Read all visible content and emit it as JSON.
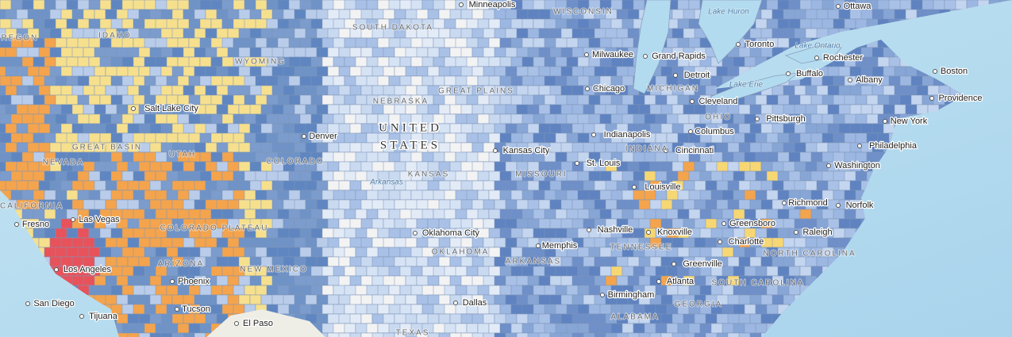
{
  "country": [
    "UNITED",
    "STATES"
  ],
  "places": [
    "Minneapolis",
    "Ottawa",
    "Toronto",
    "Rochester",
    "Boston",
    "Milwaukee",
    "Grand Rapids",
    "Detroit",
    "Buffalo",
    "Albany",
    "Chicago",
    "Cleveland",
    "Providence",
    "Salt Lake City",
    "Pittsburgh",
    "New York",
    "Denver",
    "Columbus",
    "Indianapolis",
    "Cincinnati",
    "Philadelphia",
    "Kansas City",
    "St. Louis",
    "Washington",
    "Louisville",
    "Richmond",
    "Norfolk",
    "Fresno",
    "Las Vegas",
    "Nashville",
    "Knoxville",
    "Greensboro",
    "Raleigh",
    "Oklahoma City",
    "Memphis",
    "Charlotte",
    "Greenville",
    "Phoenix",
    "Atlanta",
    "Los Angeles",
    "Birmingham",
    "San Diego",
    "Dallas",
    "Tucson",
    "El Paso",
    "Tijuana"
  ],
  "regions": [
    "OREGON",
    "IDAHO",
    "WYOMING",
    "SOUTH DAKOTA",
    "WISCONSIN",
    "NEBRASKA",
    "GREAT PLAINS",
    "MICHIGAN",
    "OHIO",
    "INDIANA",
    "GREAT BASIN",
    "UTAH",
    "NEVADA",
    "COLORADO",
    "KANSAS",
    "MISSOURI",
    "CALIFORNIA",
    "COLORADO PLATEAU",
    "OKLAHOMA",
    "TENNESSEE",
    "NORTH CAROLINA",
    "ARKANSAS",
    "ARIZONA",
    "NEW MEXICO",
    "SOUTH CAROLINA",
    "GEORGIA",
    "ALABAMA",
    "TEXAS"
  ],
  "water": [
    "Lake Huron",
    "Lake Ontario",
    "Lake Erie",
    "Arkansas"
  ]
}
